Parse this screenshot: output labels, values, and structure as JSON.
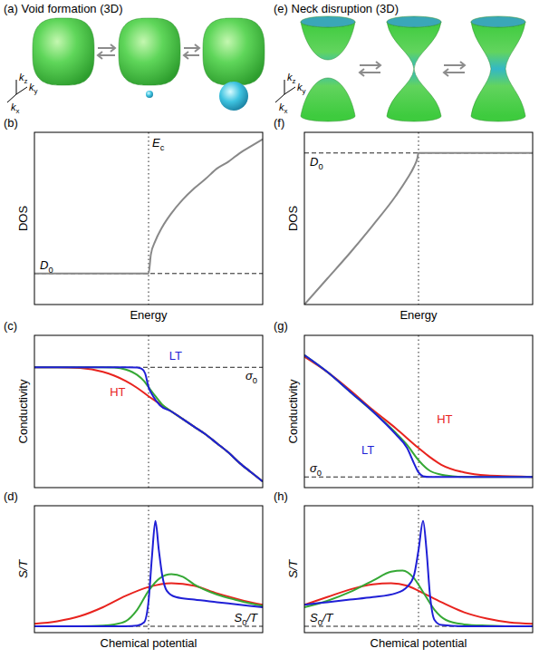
{
  "diagrams": [
    {
      "title": "(a) Void formation (3D)",
      "axis_labels": [
        [
          {
            "text": "k",
            "italic": true
          },
          {
            "text": "z",
            "sub": true
          }
        ],
        [
          {
            "text": "k",
            "italic": true
          },
          {
            "text": "y",
            "sub": true
          }
        ],
        [
          {
            "text": "k",
            "italic": true
          },
          {
            "text": "x",
            "sub": true
          }
        ]
      ]
    },
    {
      "title": "(e) Neck disruption (3D)",
      "axis_labels": [
        [
          {
            "text": "k",
            "italic": true
          },
          {
            "text": "z",
            "sub": true
          }
        ],
        [
          {
            "text": "k",
            "italic": true
          },
          {
            "text": "y",
            "sub": true
          }
        ],
        [
          {
            "text": "k",
            "italic": true
          },
          {
            "text": "x",
            "sub": true
          }
        ]
      ]
    }
  ],
  "chart_data": [
    {
      "type": "line",
      "title": "(b)",
      "x_label": "Energy",
      "y_label": "DOS",
      "xlim": [
        0,
        10
      ],
      "ylim": [
        0,
        10
      ],
      "tick_labels": false,
      "series": [
        {
          "color": "#888888",
          "x": [
            0,
            1,
            2,
            3,
            4,
            5,
            5.1,
            5.3,
            5.6,
            6,
            6.5,
            7,
            7.5,
            8,
            8.5,
            9,
            9.5,
            10
          ],
          "values": [
            1.8,
            1.8,
            1.8,
            1.8,
            1.8,
            1.8,
            2.9,
            3.7,
            4.5,
            5.3,
            6.1,
            6.75,
            7.3,
            7.9,
            8.3,
            8.8,
            9.2,
            9.6
          ]
        }
      ],
      "reference_lines": [
        {
          "axis": "x",
          "value": 5,
          "line_style": "dotted",
          "label": [
            {
              "text": "E",
              "italic": true
            },
            {
              "text": "c",
              "sub": true
            }
          ]
        },
        {
          "axis": "y",
          "value": 1.8,
          "line_style": "dashed",
          "label": [
            {
              "text": "D",
              "italic": true
            },
            {
              "text": "0",
              "sub": true
            }
          ]
        }
      ]
    },
    {
      "type": "line",
      "title": "(c)",
      "y_label": "Conductivity",
      "xlim": [
        0,
        10
      ],
      "ylim": [
        0,
        10
      ],
      "tick_labels": false,
      "series": [
        {
          "name": "HT",
          "color": "#e8231e",
          "x": [
            0,
            1,
            2,
            3,
            3.5,
            4,
            4.5,
            5,
            5.5,
            6,
            6.5,
            7,
            7.5,
            8,
            8.5,
            9,
            9.5,
            10
          ],
          "values": [
            7.9,
            7.9,
            7.85,
            7.6,
            7.35,
            7.0,
            6.55,
            6.0,
            5.5,
            5.0,
            4.5,
            4.0,
            3.5,
            2.9,
            2.3,
            1.6,
            1.0,
            0.4
          ]
        },
        {
          "color": "#35a835",
          "x": [
            0,
            1,
            2,
            3,
            3.5,
            4,
            4.5,
            4.8,
            5,
            5.3,
            5.6,
            6,
            6.5,
            7,
            7.5,
            8,
            8.5,
            9,
            9.5,
            10
          ],
          "values": [
            7.9,
            7.9,
            7.9,
            7.9,
            7.88,
            7.75,
            7.4,
            7.0,
            6.6,
            6.0,
            5.45,
            5.0,
            4.5,
            4.0,
            3.5,
            2.9,
            2.3,
            1.6,
            1.0,
            0.4
          ]
        },
        {
          "name": "LT",
          "color": "#1f1fd6",
          "x": [
            0,
            1,
            2,
            3,
            4,
            4.5,
            4.7,
            4.85,
            5,
            5.2,
            5.5,
            6,
            6.5,
            7,
            7.5,
            8,
            8.5,
            9,
            9.5,
            10
          ],
          "values": [
            7.9,
            7.9,
            7.9,
            7.9,
            7.9,
            7.88,
            7.8,
            7.5,
            6.6,
            6.0,
            5.4,
            5.0,
            4.5,
            4.0,
            3.5,
            2.9,
            2.3,
            1.6,
            1.0,
            0.4
          ]
        }
      ],
      "reference_lines": [
        {
          "axis": "x",
          "value": 5,
          "line_style": "dotted"
        },
        {
          "axis": "y",
          "value": 7.9,
          "line_style": "dashed",
          "label": [
            {
              "text": "σ",
              "italic": true
            },
            {
              "text": "0",
              "sub": true
            }
          ]
        }
      ]
    },
    {
      "type": "line",
      "title": "(d)",
      "x_label": "Chemical potential",
      "y_label": [
        {
          "text": "S/T",
          "italic": true
        }
      ],
      "xlim": [
        0,
        10
      ],
      "ylim": [
        0,
        10
      ],
      "tick_labels": false,
      "series": [
        {
          "color": "#e8231e",
          "x": [
            0,
            1,
            2,
            3,
            4,
            5,
            6,
            7,
            8,
            9,
            10
          ],
          "values": [
            0.7,
            0.9,
            1.3,
            2.0,
            2.9,
            3.6,
            3.9,
            3.7,
            3.1,
            2.6,
            2.2
          ]
        },
        {
          "color": "#35a835",
          "x": [
            0,
            1,
            2,
            3,
            3.5,
            4,
            4.5,
            5,
            5.5,
            6,
            6.5,
            7,
            8,
            9,
            10
          ],
          "values": [
            0.5,
            0.5,
            0.5,
            0.55,
            0.65,
            0.9,
            1.8,
            3.3,
            4.3,
            4.6,
            4.4,
            3.8,
            3.0,
            2.5,
            2.1
          ]
        },
        {
          "color": "#1f1fd6",
          "x": [
            0,
            1,
            2,
            3,
            4,
            4.5,
            4.8,
            5,
            5.15,
            5.3,
            5.45,
            5.6,
            5.8,
            6.2,
            7,
            8,
            9,
            10
          ],
          "values": [
            0.5,
            0.5,
            0.5,
            0.5,
            0.5,
            0.55,
            0.8,
            2.5,
            6.0,
            8.8,
            6.5,
            4.5,
            3.3,
            2.8,
            2.6,
            2.4,
            2.2,
            2.0
          ]
        }
      ],
      "reference_lines": [
        {
          "axis": "x",
          "value": 5,
          "line_style": "dotted"
        },
        {
          "axis": "y",
          "value": 0.5,
          "line_style": "dashed",
          "label": [
            {
              "text": "S",
              "italic": true
            },
            {
              "text": "0",
              "sub": true
            },
            {
              "text": "/T",
              "italic": true
            }
          ]
        }
      ]
    },
    {
      "type": "line",
      "title": "(f)",
      "x_label": "Energy",
      "y_label": "DOS",
      "xlim": [
        0,
        10
      ],
      "ylim": [
        0,
        10
      ],
      "tick_labels": false,
      "series": [
        {
          "color": "#888888",
          "x": [
            0,
            1,
            2,
            3,
            4,
            4.5,
            4.8,
            4.95,
            5,
            6,
            7,
            8,
            9,
            10
          ],
          "values": [
            0,
            1.5,
            3.0,
            4.6,
            6.3,
            7.3,
            8.0,
            8.5,
            8.8,
            8.8,
            8.8,
            8.8,
            8.8,
            8.8
          ]
        }
      ],
      "reference_lines": [
        {
          "axis": "x",
          "value": 5,
          "line_style": "dotted"
        },
        {
          "axis": "y",
          "value": 8.8,
          "line_style": "dashed",
          "label": [
            {
              "text": "D",
              "italic": true
            },
            {
              "text": "0",
              "sub": true
            }
          ]
        }
      ]
    },
    {
      "type": "line",
      "title": "(g)",
      "y_label": "Conductivity",
      "xlim": [
        0,
        10
      ],
      "ylim": [
        0,
        10
      ],
      "tick_labels": false,
      "series": [
        {
          "name": "HT",
          "color": "#e8231e",
          "x": [
            0,
            1,
            2,
            3,
            4,
            5,
            5.5,
            6,
            7,
            8,
            9,
            10
          ],
          "values": [
            8.6,
            7.6,
            6.4,
            5.1,
            3.9,
            2.6,
            2.0,
            1.5,
            1.0,
            0.8,
            0.75,
            0.7
          ]
        },
        {
          "color": "#35a835",
          "x": [
            0,
            1,
            2,
            3,
            4,
            4.5,
            5,
            5.5,
            6,
            6.5,
            7,
            8,
            9,
            10
          ],
          "values": [
            8.7,
            7.6,
            6.3,
            5.0,
            3.6,
            2.8,
            1.8,
            1.1,
            0.85,
            0.75,
            0.7,
            0.7,
            0.7,
            0.7
          ]
        },
        {
          "name": "LT",
          "color": "#1f1fd6",
          "x": [
            0,
            1,
            2,
            3,
            4,
            4.5,
            4.8,
            5,
            5.2,
            5.5,
            6,
            7,
            8,
            9,
            10
          ],
          "values": [
            8.7,
            7.6,
            6.3,
            5.0,
            3.5,
            2.6,
            1.6,
            1.0,
            0.75,
            0.7,
            0.7,
            0.7,
            0.7,
            0.7,
            0.7
          ]
        }
      ],
      "reference_lines": [
        {
          "axis": "x",
          "value": 5,
          "line_style": "dotted"
        },
        {
          "axis": "y",
          "value": 0.7,
          "line_style": "dashed",
          "label": [
            {
              "text": "σ",
              "italic": true
            },
            {
              "text": "0",
              "sub": true
            }
          ]
        }
      ]
    },
    {
      "type": "line",
      "title": "(h)",
      "x_label": "Chemical potential",
      "y_label": [
        {
          "text": "S/T",
          "italic": true
        }
      ],
      "xlim": [
        0,
        10
      ],
      "ylim": [
        0,
        10
      ],
      "tick_labels": false,
      "series": [
        {
          "color": "#e8231e",
          "x": [
            0,
            1,
            2,
            3,
            3.8,
            4.5,
            5,
            6,
            7,
            8,
            9,
            10
          ],
          "values": [
            2.2,
            2.8,
            3.4,
            3.8,
            3.9,
            3.7,
            3.3,
            2.4,
            1.6,
            1.1,
            0.8,
            0.7
          ]
        },
        {
          "color": "#35a835",
          "x": [
            0,
            1,
            2,
            3,
            3.8,
            4.3,
            4.8,
            5.2,
            5.7,
            6.2,
            7,
            8,
            9,
            10
          ],
          "values": [
            2.0,
            2.5,
            3.2,
            4.1,
            4.8,
            4.9,
            4.3,
            3.2,
            1.8,
            1.0,
            0.65,
            0.55,
            0.5,
            0.5
          ]
        },
        {
          "color": "#1f1fd6",
          "x": [
            0,
            1,
            2,
            3,
            4,
            4.5,
            4.8,
            5,
            5.2,
            5.35,
            5.5,
            5.7,
            6,
            7,
            8,
            9,
            10
          ],
          "values": [
            2.2,
            2.4,
            2.6,
            2.8,
            3.1,
            3.6,
            4.5,
            6.5,
            8.8,
            6.5,
            3.0,
            1.0,
            0.6,
            0.5,
            0.5,
            0.5,
            0.5
          ]
        }
      ],
      "reference_lines": [
        {
          "axis": "x",
          "value": 5,
          "line_style": "dotted"
        },
        {
          "axis": "y",
          "value": 0.5,
          "line_style": "dashed",
          "label": [
            {
              "text": "S",
              "italic": true
            },
            {
              "text": "0",
              "sub": true
            },
            {
              "text": "/T",
              "italic": true
            }
          ]
        }
      ]
    }
  ]
}
